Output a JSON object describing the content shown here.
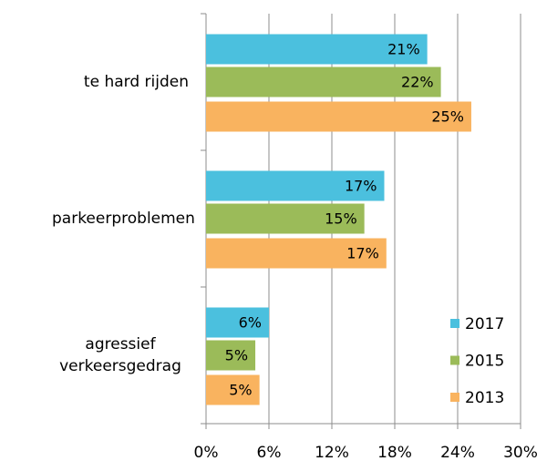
{
  "chart_data": {
    "type": "bar",
    "orientation": "horizontal",
    "categories": [
      "te hard rijden",
      "parkeerproblemen",
      "agressief verkeersgedrag"
    ],
    "series": [
      {
        "name": "2017",
        "color": "#4bc0de",
        "values": [
          21.1,
          17.0,
          6.0
        ],
        "value_labels": [
          "21%",
          "17%",
          "6%"
        ]
      },
      {
        "name": "2015",
        "color": "#9bbb59",
        "values": [
          22.4,
          15.1,
          4.7
        ],
        "value_labels": [
          "22%",
          "15%",
          "5%"
        ]
      },
      {
        "name": "2013",
        "color": "#f9b35f",
        "values": [
          25.3,
          17.2,
          5.1
        ],
        "value_labels": [
          "25%",
          "17%",
          "5%"
        ]
      }
    ],
    "xlim": [
      0,
      30
    ],
    "xticks": [
      {
        "value": 0,
        "label": "0%"
      },
      {
        "value": 6,
        "label": "6%"
      },
      {
        "value": 12,
        "label": "12%"
      },
      {
        "value": 18,
        "label": "18%"
      },
      {
        "value": 24,
        "label": "24%"
      },
      {
        "value": 30,
        "label": "30%"
      }
    ],
    "grid": true,
    "legend": "lower right"
  }
}
